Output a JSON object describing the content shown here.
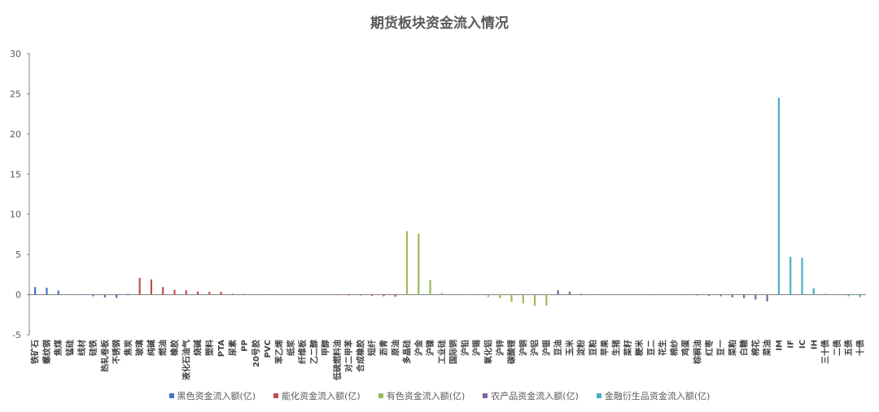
{
  "chart_data": {
    "type": "bar",
    "title": "期货板块资金流入情况",
    "xlabel": "",
    "ylabel": "",
    "ylim": [
      -5,
      30
    ],
    "yticks": [
      -5,
      0,
      5,
      10,
      15,
      20,
      25,
      30
    ],
    "grid": false,
    "legend_position": "bottom",
    "categories": [
      "铁矿石",
      "螺纹钢",
      "焦煤",
      "锰硅",
      "线材",
      "硅铁",
      "热轧卷板",
      "不锈钢",
      "焦炭",
      "玻璃",
      "纯碱",
      "燃油",
      "橡胶",
      "液化石油气",
      "烧碱",
      "塑料",
      "PTA",
      "尿素",
      "PP",
      "20号胶",
      "PVC",
      "苯乙烯",
      "纸浆",
      "纤维板",
      "乙二醇",
      "甲醇",
      "低硫燃料油",
      "对二甲苯",
      "合成橡胶",
      "短纤",
      "沥青",
      "原油",
      "多晶硅",
      "沪金",
      "沪镍",
      "工业硅",
      "国际铜",
      "沪铅",
      "沪锡",
      "氧化铝",
      "沪锌",
      "碳酸锂",
      "沪铜",
      "沪铝",
      "沪银",
      "豆油",
      "玉米",
      "淀粉",
      "豆粕",
      "苹果",
      "生猪",
      "菜籽",
      "粳米",
      "豆二",
      "花生",
      "棉纱",
      "鸡蛋",
      "棕榈油",
      "红枣",
      "豆一",
      "菜粕",
      "白糖",
      "棉花",
      "菜油",
      "IM",
      "IF",
      "IC",
      "IH",
      "三十债",
      "二债",
      "五债",
      "十债"
    ],
    "series": [
      {
        "name": "黑色资金流入额(亿)",
        "color": "#4472C4",
        "values": [
          0.95,
          0.85,
          0.5,
          0.05,
          0.03,
          -0.2,
          -0.35,
          -0.4,
          0.1,
          null,
          null,
          null,
          null,
          null,
          null,
          null,
          null,
          null,
          null,
          null,
          null,
          null,
          null,
          null,
          null,
          null,
          null,
          null,
          null,
          null,
          null,
          null,
          null,
          null,
          null,
          null,
          null,
          null,
          null,
          null,
          null,
          null,
          null,
          null,
          null,
          null,
          null,
          null,
          null,
          null,
          null,
          null,
          null,
          null,
          null,
          null,
          null,
          null,
          null,
          null,
          null,
          null,
          null,
          null,
          null,
          null,
          null,
          null,
          null,
          null,
          null,
          null
        ]
      },
      {
        "name": "能化资金流入额(亿)",
        "color": "#C0504D",
        "values": [
          null,
          null,
          null,
          null,
          null,
          null,
          null,
          null,
          null,
          2.1,
          1.9,
          0.95,
          0.6,
          0.55,
          0.4,
          0.35,
          0.35,
          0.1,
          0.08,
          0.05,
          0.05,
          0.03,
          0.02,
          0.02,
          0.02,
          0.01,
          -0.05,
          -0.1,
          -0.1,
          -0.15,
          -0.2,
          -0.25,
          null,
          null,
          null,
          null,
          null,
          null,
          null,
          null,
          null,
          null,
          null,
          null,
          null,
          null,
          null,
          null,
          null,
          null,
          null,
          null,
          null,
          null,
          null,
          null,
          null,
          null,
          null,
          null,
          null,
          null,
          null,
          null,
          null,
          null,
          null,
          null,
          null,
          null,
          null,
          null
        ]
      },
      {
        "name": "有色资金流入额(亿)",
        "color": "#9BBB59",
        "values": [
          null,
          null,
          null,
          null,
          null,
          null,
          null,
          null,
          null,
          null,
          null,
          null,
          null,
          null,
          null,
          null,
          null,
          null,
          null,
          null,
          null,
          null,
          null,
          null,
          null,
          null,
          null,
          null,
          null,
          null,
          null,
          null,
          7.9,
          7.6,
          1.8,
          0.2,
          0.05,
          0.02,
          -0.05,
          -0.3,
          -0.45,
          -0.9,
          -1.1,
          -1.4,
          -1.35,
          null,
          null,
          null,
          null,
          null,
          null,
          null,
          null,
          null,
          null,
          null,
          null,
          null,
          null,
          null,
          null,
          null,
          null,
          null,
          null,
          null,
          null,
          null,
          null,
          null,
          null,
          null
        ]
      },
      {
        "name": "农产品资金流入额(亿)",
        "color": "#8064A2",
        "values": [
          null,
          null,
          null,
          null,
          null,
          null,
          null,
          null,
          null,
          null,
          null,
          null,
          null,
          null,
          null,
          null,
          null,
          null,
          null,
          null,
          null,
          null,
          null,
          null,
          null,
          null,
          null,
          null,
          null,
          null,
          null,
          null,
          null,
          null,
          null,
          null,
          null,
          null,
          null,
          null,
          null,
          null,
          null,
          null,
          null,
          0.55,
          0.4,
          0.1,
          0.05,
          0.03,
          0.02,
          0.01,
          0.01,
          -0.01,
          -0.02,
          -0.03,
          -0.05,
          -0.1,
          -0.15,
          -0.2,
          -0.35,
          -0.45,
          -0.6,
          -0.85,
          null,
          null,
          null,
          null,
          null,
          null,
          null,
          null
        ]
      },
      {
        "name": "金融衍生品资金流入额(亿)",
        "color": "#4BACC6",
        "values": [
          null,
          null,
          null,
          null,
          null,
          null,
          null,
          null,
          null,
          null,
          null,
          null,
          null,
          null,
          null,
          null,
          null,
          null,
          null,
          null,
          null,
          null,
          null,
          null,
          null,
          null,
          null,
          null,
          null,
          null,
          null,
          null,
          null,
          null,
          null,
          null,
          null,
          null,
          null,
          null,
          null,
          null,
          null,
          null,
          null,
          null,
          null,
          null,
          null,
          null,
          null,
          null,
          null,
          null,
          null,
          null,
          null,
          null,
          null,
          null,
          null,
          null,
          null,
          null,
          24.5,
          4.7,
          4.6,
          0.8,
          0.1,
          0.02,
          -0.2,
          -0.3
        ]
      }
    ]
  }
}
